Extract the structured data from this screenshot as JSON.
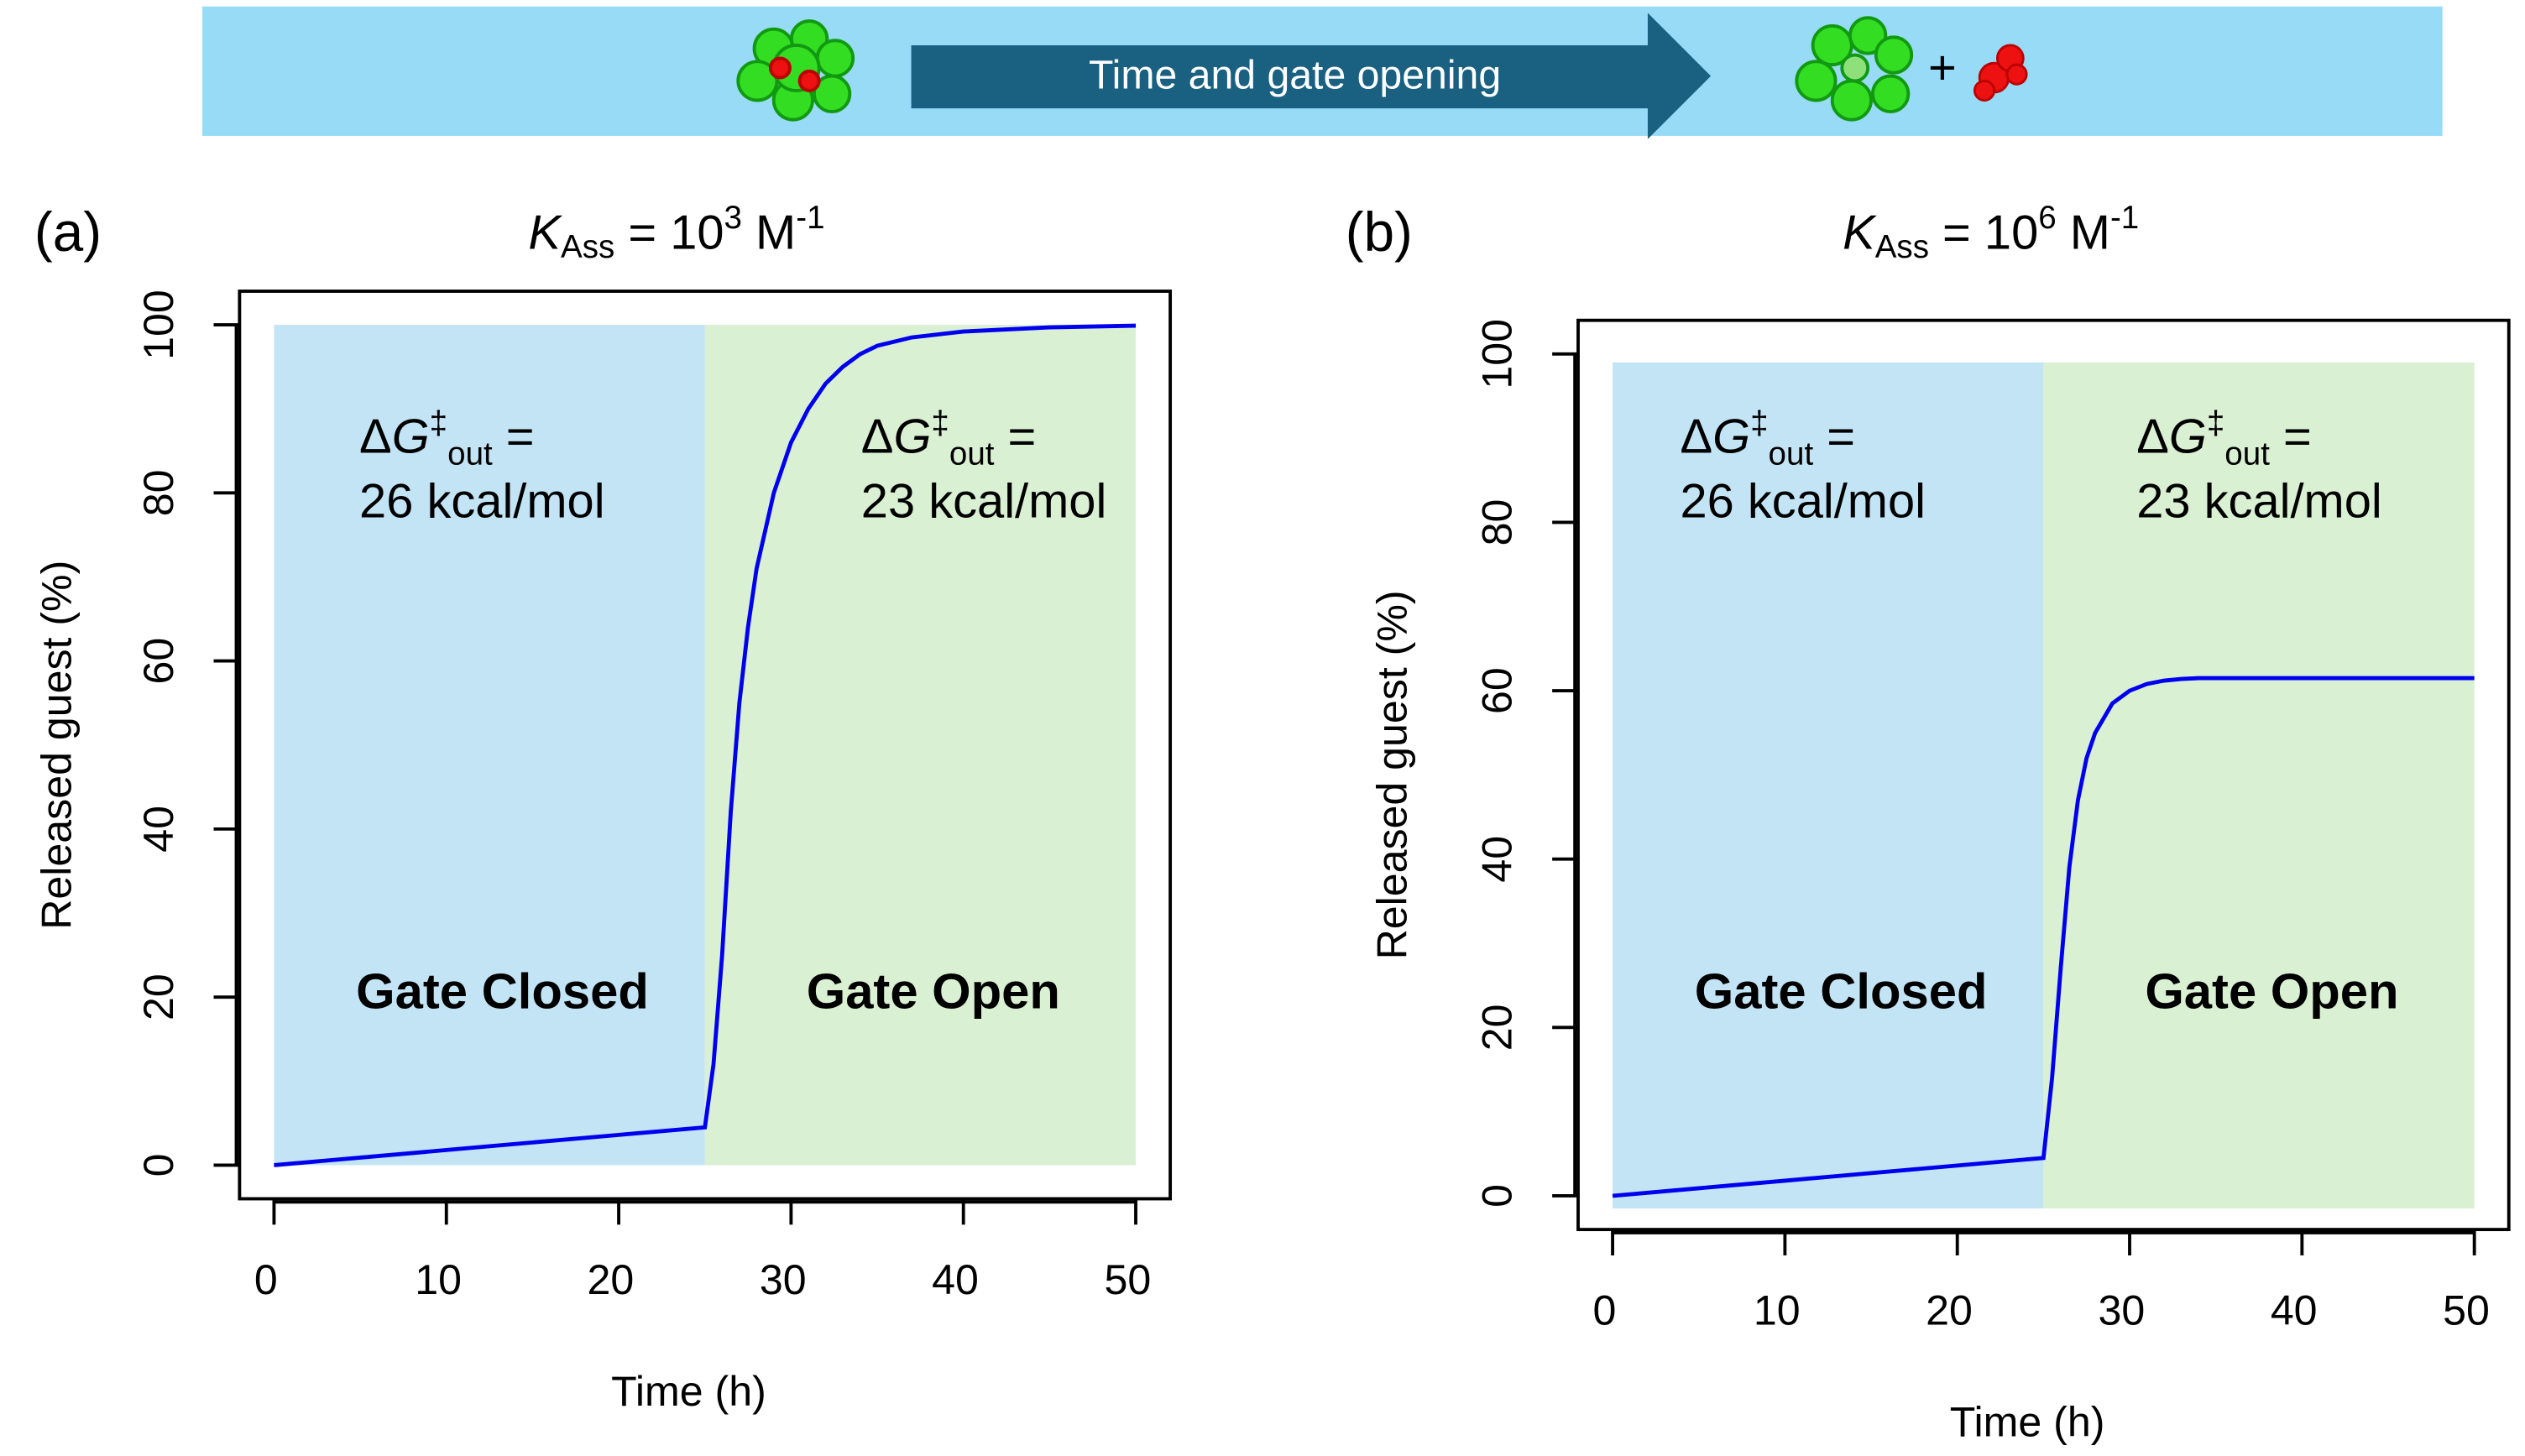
{
  "banner": {
    "text": "Time and gate opening",
    "plus": "+"
  },
  "chart_data": [
    {
      "type": "line",
      "panel": "(a)",
      "title_parts": [
        "K",
        "Ass",
        " = 10",
        "3",
        " M",
        "-1"
      ],
      "x_label": "Time (h)",
      "y_label": "Released guest (%)",
      "xlim": [
        -2,
        52
      ],
      "ylim": [
        -4,
        104
      ],
      "xticks": [
        0,
        10,
        20,
        30,
        40,
        50
      ],
      "yticks": [
        0,
        20,
        40,
        60,
        80,
        100
      ],
      "color": "#0000ee",
      "x": [
        0,
        5,
        10,
        15,
        20,
        25,
        25.5,
        26,
        26.5,
        27,
        27.5,
        28,
        29,
        30,
        31,
        32,
        33,
        34,
        35,
        37,
        40,
        45,
        50
      ],
      "values": [
        0,
        0.9,
        1.8,
        2.7,
        3.6,
        4.5,
        12,
        25,
        42,
        55,
        64,
        71,
        80,
        86,
        90,
        93,
        95,
        96.5,
        97.5,
        98.5,
        99.2,
        99.7,
        99.9
      ],
      "regions": [
        {
          "x": [
            0,
            25
          ],
          "y": [
            0,
            100
          ],
          "color": "#c3e4f5",
          "label": "Gate Closed",
          "annotation": [
            "Δ",
            "G",
            "‡",
            "out",
            " =",
            "26 kcal/mol"
          ]
        },
        {
          "x": [
            25,
            50
          ],
          "y": [
            0,
            100
          ],
          "color": "#d9f0d3",
          "label": "Gate Open",
          "annotation": [
            "Δ",
            "G",
            "‡",
            "out",
            " =",
            "23 kcal/mol"
          ]
        }
      ]
    },
    {
      "type": "line",
      "panel": "(b)",
      "title_parts": [
        "K",
        "Ass",
        " = 10",
        "6",
        " M",
        "-1"
      ],
      "x_label": "Time (h)",
      "y_label": "Released guest (%)",
      "xlim": [
        -2,
        52
      ],
      "ylim": [
        -4,
        104
      ],
      "xticks": [
        0,
        10,
        20,
        30,
        40,
        50
      ],
      "yticks": [
        0,
        20,
        40,
        60,
        80,
        100
      ],
      "color": "#0000ee",
      "x": [
        0,
        5,
        10,
        15,
        20,
        25,
        25.5,
        26,
        26.5,
        27,
        27.5,
        28,
        29,
        30,
        31,
        32,
        33,
        34,
        35,
        37,
        40,
        45,
        50
      ],
      "values": [
        0,
        0.9,
        1.8,
        2.7,
        3.6,
        4.5,
        14,
        27,
        39,
        47,
        52,
        55,
        58.5,
        60,
        60.8,
        61.2,
        61.4,
        61.5,
        61.5,
        61.5,
        61.5,
        61.5,
        61.5
      ],
      "regions": [
        {
          "x": [
            0,
            25
          ],
          "y": [
            -1.5,
            99
          ],
          "color": "#c3e4f5",
          "label": "Gate Closed",
          "annotation": [
            "Δ",
            "G",
            "‡",
            "out",
            " =",
            "26 kcal/mol"
          ]
        },
        {
          "x": [
            25,
            50
          ],
          "y": [
            -1.5,
            99
          ],
          "color": "#d9f0d3",
          "label": "Gate Open",
          "annotation": [
            "Δ",
            "G",
            "‡",
            "out",
            " =",
            "23 kcal/mol"
          ]
        }
      ]
    }
  ]
}
